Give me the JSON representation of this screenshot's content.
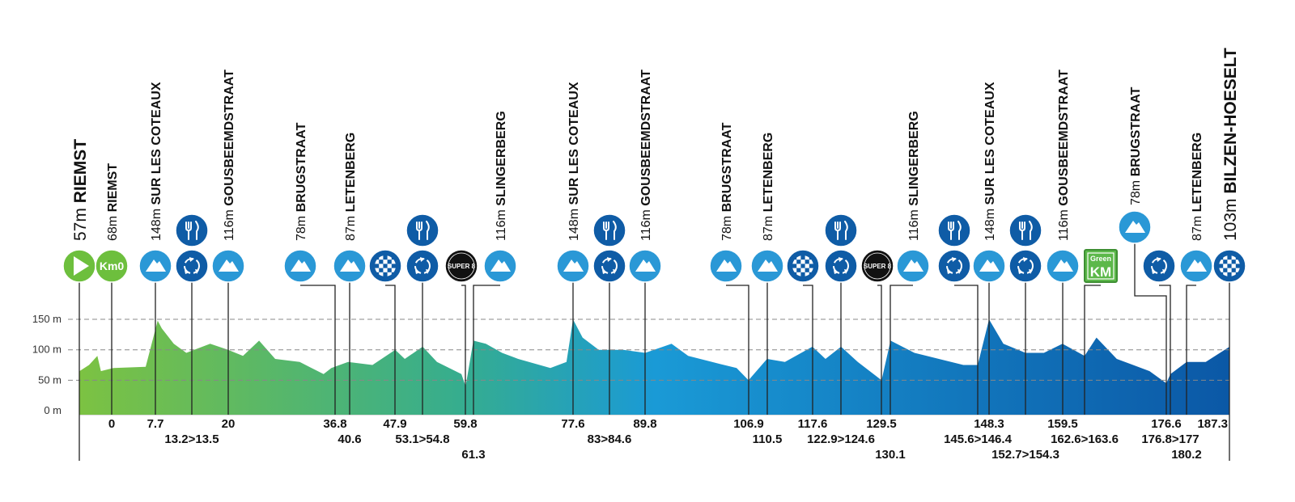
{
  "y_axis": {
    "ylim": [
      0,
      150
    ],
    "ticks": [
      {
        "value": 150,
        "label": "150 m"
      },
      {
        "value": 100,
        "label": "100 m"
      },
      {
        "value": 50,
        "label": "50 m"
      },
      {
        "value": 0,
        "label": "0 m"
      }
    ]
  },
  "profile": {
    "km": [
      -5.4,
      -3.8,
      -2.4,
      -1.8,
      0.3,
      5.7,
      7.7,
      8.4,
      10.4,
      12.5,
      16.5,
      19.5,
      22,
      24.7,
      27.4,
      31.5,
      35.5,
      36.8,
      39.6,
      43.7,
      47.5,
      49.1,
      52.1,
      54.5,
      58.6,
      59.3,
      60.6,
      62.7,
      65.4,
      68.1,
      73.5,
      76.2,
      77.3,
      78.9,
      81.6,
      85.7,
      89.4,
      93.8,
      96.6,
      100.6,
      104.7,
      106.7,
      109.8,
      112.8,
      117.4,
      119.6,
      122.2,
      125,
      129,
      130.5,
      134.5,
      138.6,
      142.7,
      145.1,
      147,
      149.4,
      153.1,
      156.2,
      159.3,
      163,
      165,
      168.4,
      173.9,
      176.7,
      177.4,
      180.1,
      183.3,
      187.3
    ],
    "elevation": [
      65,
      75,
      90,
      65,
      70,
      72,
      148,
      135,
      110,
      95,
      110,
      100,
      90,
      115,
      85,
      80,
      60,
      70,
      80,
      75,
      100,
      85,
      105,
      80,
      60,
      40,
      115,
      110,
      95,
      85,
      70,
      80,
      150,
      120,
      100,
      100,
      95,
      110,
      90,
      80,
      70,
      50,
      85,
      80,
      105,
      85,
      105,
      80,
      50,
      115,
      95,
      85,
      75,
      75,
      150,
      110,
      95,
      95,
      110,
      90,
      120,
      85,
      65,
      45,
      60,
      80,
      80,
      105
    ]
  },
  "points": [
    {
      "icon": "start",
      "altitude": "57m",
      "name": "RIEMST"
    },
    {
      "icon": "km0",
      "icon_text": "Km0",
      "altitude": "68m",
      "name": "RIEMST",
      "km": "0"
    },
    {
      "icon": "climb",
      "altitude": "148m",
      "name": "SUR LES COTEAUX",
      "km": "7.7"
    },
    {
      "icon": "feed",
      "km": "13.2>13.5"
    },
    {
      "icon": "climb",
      "altitude": "116m",
      "name": "GOUSBEEMDSTRAAT",
      "km": "20"
    },
    {
      "icon": "climb",
      "altitude": "78m",
      "name": "BRUGSTRAAT",
      "km": "36.8"
    },
    {
      "icon": "climb",
      "altitude": "87m",
      "name": "LETENBERG",
      "km": "40.6"
    },
    {
      "icon": "sprint",
      "km": "47.9"
    },
    {
      "icon": "feed",
      "km": "53.1>54.8"
    },
    {
      "icon": "checkpoint",
      "icon_text": "SUPER 8",
      "km": "59.8"
    },
    {
      "icon": "climb",
      "altitude": "116m",
      "name": "SLINGERBERG",
      "km": "61.3"
    },
    {
      "icon": "climb",
      "altitude": "148m",
      "name": "SUR LES COTEAUX",
      "km": "77.6"
    },
    {
      "icon": "feed",
      "km": "83>84.6"
    },
    {
      "icon": "climb",
      "altitude": "116m",
      "name": "GOUSBEEMDSTRAAT",
      "km": "89.8"
    },
    {
      "icon": "climb",
      "altitude": "78m",
      "name": "BRUGSTRAAT",
      "km": "106.9"
    },
    {
      "icon": "climb",
      "altitude": "87m",
      "name": "LETENBERG",
      "km": "110.5"
    },
    {
      "icon": "sprint",
      "km": "117.6"
    },
    {
      "icon": "feed",
      "km": "122.9>124.6"
    },
    {
      "icon": "checkpoint",
      "icon_text": "SUPER 8",
      "km": "129.5"
    },
    {
      "icon": "climb",
      "altitude": "116m",
      "name": "SLINGERBERG",
      "km": "130.1"
    },
    {
      "icon": "feed",
      "km": "145.6>146.4"
    },
    {
      "icon": "climb",
      "altitude": "148m",
      "name": "SUR LES COTEAUX",
      "km": "148.3"
    },
    {
      "icon": "feed",
      "km": "152.7>154.3"
    },
    {
      "icon": "climb",
      "altitude": "116m",
      "name": "GOUSBEEMDSTRAAT",
      "km": "159.5"
    },
    {
      "icon": "greenkm",
      "icon_text": [
        "Green",
        "KM"
      ],
      "km": "162.6>163.6"
    },
    {
      "icon": "climb",
      "altitude": "78m",
      "name": "BRUGSTRAAT",
      "km": "176.6"
    },
    {
      "icon": "waste",
      "km": "176.8>177"
    },
    {
      "icon": "climb",
      "altitude": "87m",
      "name": "LETENBERG",
      "km": "180.2"
    },
    {
      "icon": "finish",
      "altitude": "103m",
      "name": "BILZEN-HOESELT",
      "km": "187.3"
    }
  ]
}
